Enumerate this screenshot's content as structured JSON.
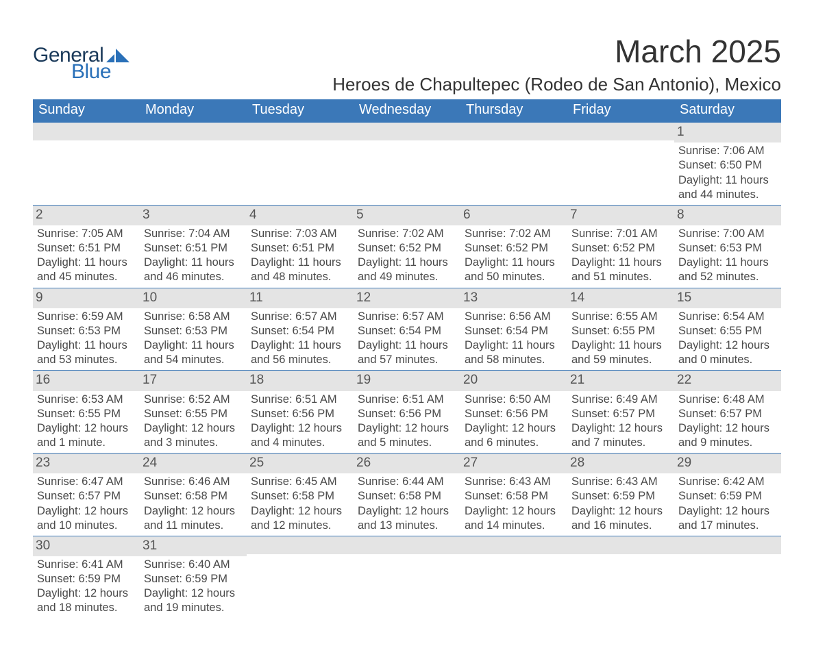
{
  "brand": {
    "name_part1": "General",
    "name_part2": "Blue",
    "color_dark": "#1b3a5a",
    "color_accent": "#2a70b8"
  },
  "title": "March 2025",
  "location": "Heroes de Chapultepec (Rodeo de San Antonio), Mexico",
  "colors": {
    "header_bg": "#3b78b8",
    "header_text": "#ffffff",
    "daynum_bg": "#e4e4e4",
    "body_text": "#4a4a4a",
    "row_divider": "#3b78b8",
    "page_bg": "#ffffff"
  },
  "typography": {
    "title_fontsize": 46,
    "location_fontsize": 26,
    "weekday_fontsize": 20,
    "cell_fontsize": 16.5
  },
  "weekdays": [
    "Sunday",
    "Monday",
    "Tuesday",
    "Wednesday",
    "Thursday",
    "Friday",
    "Saturday"
  ],
  "weeks": [
    [
      {
        "day": "",
        "sunrise": "",
        "sunset": "",
        "daylight1": "",
        "daylight2": ""
      },
      {
        "day": "",
        "sunrise": "",
        "sunset": "",
        "daylight1": "",
        "daylight2": ""
      },
      {
        "day": "",
        "sunrise": "",
        "sunset": "",
        "daylight1": "",
        "daylight2": ""
      },
      {
        "day": "",
        "sunrise": "",
        "sunset": "",
        "daylight1": "",
        "daylight2": ""
      },
      {
        "day": "",
        "sunrise": "",
        "sunset": "",
        "daylight1": "",
        "daylight2": ""
      },
      {
        "day": "",
        "sunrise": "",
        "sunset": "",
        "daylight1": "",
        "daylight2": ""
      },
      {
        "day": "1",
        "sunrise": "Sunrise: 7:06 AM",
        "sunset": "Sunset: 6:50 PM",
        "daylight1": "Daylight: 11 hours",
        "daylight2": "and 44 minutes."
      }
    ],
    [
      {
        "day": "2",
        "sunrise": "Sunrise: 7:05 AM",
        "sunset": "Sunset: 6:51 PM",
        "daylight1": "Daylight: 11 hours",
        "daylight2": "and 45 minutes."
      },
      {
        "day": "3",
        "sunrise": "Sunrise: 7:04 AM",
        "sunset": "Sunset: 6:51 PM",
        "daylight1": "Daylight: 11 hours",
        "daylight2": "and 46 minutes."
      },
      {
        "day": "4",
        "sunrise": "Sunrise: 7:03 AM",
        "sunset": "Sunset: 6:51 PM",
        "daylight1": "Daylight: 11 hours",
        "daylight2": "and 48 minutes."
      },
      {
        "day": "5",
        "sunrise": "Sunrise: 7:02 AM",
        "sunset": "Sunset: 6:52 PM",
        "daylight1": "Daylight: 11 hours",
        "daylight2": "and 49 minutes."
      },
      {
        "day": "6",
        "sunrise": "Sunrise: 7:02 AM",
        "sunset": "Sunset: 6:52 PM",
        "daylight1": "Daylight: 11 hours",
        "daylight2": "and 50 minutes."
      },
      {
        "day": "7",
        "sunrise": "Sunrise: 7:01 AM",
        "sunset": "Sunset: 6:52 PM",
        "daylight1": "Daylight: 11 hours",
        "daylight2": "and 51 minutes."
      },
      {
        "day": "8",
        "sunrise": "Sunrise: 7:00 AM",
        "sunset": "Sunset: 6:53 PM",
        "daylight1": "Daylight: 11 hours",
        "daylight2": "and 52 minutes."
      }
    ],
    [
      {
        "day": "9",
        "sunrise": "Sunrise: 6:59 AM",
        "sunset": "Sunset: 6:53 PM",
        "daylight1": "Daylight: 11 hours",
        "daylight2": "and 53 minutes."
      },
      {
        "day": "10",
        "sunrise": "Sunrise: 6:58 AM",
        "sunset": "Sunset: 6:53 PM",
        "daylight1": "Daylight: 11 hours",
        "daylight2": "and 54 minutes."
      },
      {
        "day": "11",
        "sunrise": "Sunrise: 6:57 AM",
        "sunset": "Sunset: 6:54 PM",
        "daylight1": "Daylight: 11 hours",
        "daylight2": "and 56 minutes."
      },
      {
        "day": "12",
        "sunrise": "Sunrise: 6:57 AM",
        "sunset": "Sunset: 6:54 PM",
        "daylight1": "Daylight: 11 hours",
        "daylight2": "and 57 minutes."
      },
      {
        "day": "13",
        "sunrise": "Sunrise: 6:56 AM",
        "sunset": "Sunset: 6:54 PM",
        "daylight1": "Daylight: 11 hours",
        "daylight2": "and 58 minutes."
      },
      {
        "day": "14",
        "sunrise": "Sunrise: 6:55 AM",
        "sunset": "Sunset: 6:55 PM",
        "daylight1": "Daylight: 11 hours",
        "daylight2": "and 59 minutes."
      },
      {
        "day": "15",
        "sunrise": "Sunrise: 6:54 AM",
        "sunset": "Sunset: 6:55 PM",
        "daylight1": "Daylight: 12 hours",
        "daylight2": "and 0 minutes."
      }
    ],
    [
      {
        "day": "16",
        "sunrise": "Sunrise: 6:53 AM",
        "sunset": "Sunset: 6:55 PM",
        "daylight1": "Daylight: 12 hours",
        "daylight2": "and 1 minute."
      },
      {
        "day": "17",
        "sunrise": "Sunrise: 6:52 AM",
        "sunset": "Sunset: 6:55 PM",
        "daylight1": "Daylight: 12 hours",
        "daylight2": "and 3 minutes."
      },
      {
        "day": "18",
        "sunrise": "Sunrise: 6:51 AM",
        "sunset": "Sunset: 6:56 PM",
        "daylight1": "Daylight: 12 hours",
        "daylight2": "and 4 minutes."
      },
      {
        "day": "19",
        "sunrise": "Sunrise: 6:51 AM",
        "sunset": "Sunset: 6:56 PM",
        "daylight1": "Daylight: 12 hours",
        "daylight2": "and 5 minutes."
      },
      {
        "day": "20",
        "sunrise": "Sunrise: 6:50 AM",
        "sunset": "Sunset: 6:56 PM",
        "daylight1": "Daylight: 12 hours",
        "daylight2": "and 6 minutes."
      },
      {
        "day": "21",
        "sunrise": "Sunrise: 6:49 AM",
        "sunset": "Sunset: 6:57 PM",
        "daylight1": "Daylight: 12 hours",
        "daylight2": "and 7 minutes."
      },
      {
        "day": "22",
        "sunrise": "Sunrise: 6:48 AM",
        "sunset": "Sunset: 6:57 PM",
        "daylight1": "Daylight: 12 hours",
        "daylight2": "and 9 minutes."
      }
    ],
    [
      {
        "day": "23",
        "sunrise": "Sunrise: 6:47 AM",
        "sunset": "Sunset: 6:57 PM",
        "daylight1": "Daylight: 12 hours",
        "daylight2": "and 10 minutes."
      },
      {
        "day": "24",
        "sunrise": "Sunrise: 6:46 AM",
        "sunset": "Sunset: 6:58 PM",
        "daylight1": "Daylight: 12 hours",
        "daylight2": "and 11 minutes."
      },
      {
        "day": "25",
        "sunrise": "Sunrise: 6:45 AM",
        "sunset": "Sunset: 6:58 PM",
        "daylight1": "Daylight: 12 hours",
        "daylight2": "and 12 minutes."
      },
      {
        "day": "26",
        "sunrise": "Sunrise: 6:44 AM",
        "sunset": "Sunset: 6:58 PM",
        "daylight1": "Daylight: 12 hours",
        "daylight2": "and 13 minutes."
      },
      {
        "day": "27",
        "sunrise": "Sunrise: 6:43 AM",
        "sunset": "Sunset: 6:58 PM",
        "daylight1": "Daylight: 12 hours",
        "daylight2": "and 14 minutes."
      },
      {
        "day": "28",
        "sunrise": "Sunrise: 6:43 AM",
        "sunset": "Sunset: 6:59 PM",
        "daylight1": "Daylight: 12 hours",
        "daylight2": "and 16 minutes."
      },
      {
        "day": "29",
        "sunrise": "Sunrise: 6:42 AM",
        "sunset": "Sunset: 6:59 PM",
        "daylight1": "Daylight: 12 hours",
        "daylight2": "and 17 minutes."
      }
    ],
    [
      {
        "day": "30",
        "sunrise": "Sunrise: 6:41 AM",
        "sunset": "Sunset: 6:59 PM",
        "daylight1": "Daylight: 12 hours",
        "daylight2": "and 18 minutes."
      },
      {
        "day": "31",
        "sunrise": "Sunrise: 6:40 AM",
        "sunset": "Sunset: 6:59 PM",
        "daylight1": "Daylight: 12 hours",
        "daylight2": "and 19 minutes."
      },
      {
        "day": "",
        "sunrise": "",
        "sunset": "",
        "daylight1": "",
        "daylight2": ""
      },
      {
        "day": "",
        "sunrise": "",
        "sunset": "",
        "daylight1": "",
        "daylight2": ""
      },
      {
        "day": "",
        "sunrise": "",
        "sunset": "",
        "daylight1": "",
        "daylight2": ""
      },
      {
        "day": "",
        "sunrise": "",
        "sunset": "",
        "daylight1": "",
        "daylight2": ""
      },
      {
        "day": "",
        "sunrise": "",
        "sunset": "",
        "daylight1": "",
        "daylight2": ""
      }
    ]
  ]
}
